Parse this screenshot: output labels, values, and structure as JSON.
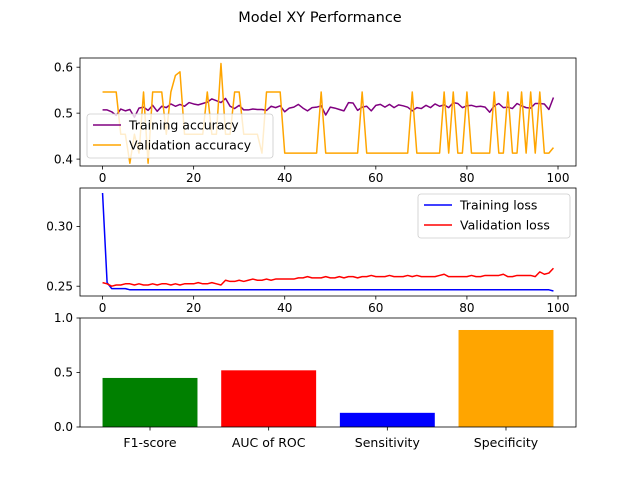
{
  "figure": {
    "title": "Model XY Performance"
  },
  "chart_data": [
    {
      "type": "line",
      "ylim": [
        0.385,
        0.62
      ],
      "xlim": [
        -4.95,
        103.95
      ],
      "x_ticks": [
        0,
        20,
        40,
        60,
        80,
        100
      ],
      "y_ticks": [
        0.4,
        0.5,
        0.6
      ],
      "legend_position": "lower-left",
      "grid": false,
      "series": [
        {
          "name": "Training accuracy",
          "color": "#800080",
          "values": [
            0.507,
            0.507,
            0.503,
            0.495,
            0.509,
            0.505,
            0.508,
            0.491,
            0.511,
            0.513,
            0.506,
            0.517,
            0.504,
            0.515,
            0.512,
            0.52,
            0.515,
            0.519,
            0.515,
            0.523,
            0.52,
            0.518,
            0.521,
            0.524,
            0.531,
            0.527,
            0.523,
            0.532,
            0.515,
            0.51,
            0.517,
            0.507,
            0.507,
            0.509,
            0.508,
            0.508,
            0.506,
            0.515,
            0.512,
            0.516,
            0.503,
            0.511,
            0.513,
            0.519,
            0.511,
            0.505,
            0.512,
            0.513,
            0.516,
            0.496,
            0.513,
            0.511,
            0.508,
            0.505,
            0.523,
            0.522,
            0.506,
            0.513,
            0.515,
            0.505,
            0.517,
            0.519,
            0.513,
            0.519,
            0.512,
            0.518,
            0.516,
            0.513,
            0.505,
            0.512,
            0.51,
            0.517,
            0.512,
            0.52,
            0.515,
            0.518,
            0.512,
            0.523,
            0.521,
            0.512,
            0.516,
            0.517,
            0.514,
            0.515,
            0.513,
            0.502,
            0.516,
            0.521,
            0.512,
            0.513,
            0.51,
            0.521,
            0.516,
            0.512,
            0.511,
            0.521,
            0.521,
            0.52,
            0.508,
            0.534
          ]
        },
        {
          "name": "Validation accuracy",
          "color": "#ffa500",
          "values": [
            0.546,
            0.546,
            0.546,
            0.546,
            0.454,
            0.454,
            0.391,
            0.454,
            0.413,
            0.546,
            0.391,
            0.546,
            0.546,
            0.546,
            0.454,
            0.546,
            0.582,
            0.59,
            0.454,
            0.454,
            0.454,
            0.454,
            0.454,
            0.546,
            0.454,
            0.454,
            0.608,
            0.454,
            0.454,
            0.546,
            0.546,
            0.454,
            0.454,
            0.454,
            0.454,
            0.413,
            0.546,
            0.546,
            0.546,
            0.546,
            0.413,
            0.413,
            0.413,
            0.413,
            0.413,
            0.413,
            0.413,
            0.413,
            0.546,
            0.413,
            0.413,
            0.413,
            0.413,
            0.413,
            0.413,
            0.413,
            0.413,
            0.546,
            0.413,
            0.413,
            0.413,
            0.413,
            0.413,
            0.413,
            0.413,
            0.413,
            0.413,
            0.413,
            0.546,
            0.413,
            0.413,
            0.413,
            0.413,
            0.413,
            0.413,
            0.546,
            0.413,
            0.546,
            0.413,
            0.413,
            0.546,
            0.413,
            0.413,
            0.413,
            0.413,
            0.413,
            0.546,
            0.413,
            0.413,
            0.546,
            0.413,
            0.413,
            0.546,
            0.413,
            0.546,
            0.413,
            0.546,
            0.413,
            0.413,
            0.425
          ]
        }
      ]
    },
    {
      "type": "line",
      "ylim": [
        0.2418,
        0.3322
      ],
      "xlim": [
        -4.95,
        103.95
      ],
      "x_ticks": [
        0,
        20,
        40,
        60,
        80,
        100
      ],
      "y_ticks": [
        0.25,
        0.3
      ],
      "legend_position": "upper-right",
      "grid": false,
      "series": [
        {
          "name": "Training loss",
          "color": "#0000ff",
          "values": [
            0.328,
            0.253,
            0.248,
            0.248,
            0.248,
            0.248,
            0.247,
            0.247,
            0.247,
            0.247,
            0.247,
            0.247,
            0.247,
            0.247,
            0.247,
            0.247,
            0.247,
            0.247,
            0.247,
            0.247,
            0.247,
            0.247,
            0.247,
            0.247,
            0.247,
            0.247,
            0.247,
            0.247,
            0.247,
            0.247,
            0.247,
            0.247,
            0.247,
            0.247,
            0.247,
            0.247,
            0.247,
            0.247,
            0.247,
            0.247,
            0.247,
            0.247,
            0.247,
            0.247,
            0.247,
            0.247,
            0.247,
            0.247,
            0.247,
            0.247,
            0.247,
            0.247,
            0.247,
            0.247,
            0.247,
            0.247,
            0.247,
            0.247,
            0.247,
            0.247,
            0.247,
            0.247,
            0.247,
            0.247,
            0.247,
            0.247,
            0.247,
            0.247,
            0.247,
            0.247,
            0.247,
            0.247,
            0.247,
            0.247,
            0.247,
            0.247,
            0.247,
            0.247,
            0.247,
            0.247,
            0.247,
            0.247,
            0.247,
            0.247,
            0.247,
            0.247,
            0.247,
            0.247,
            0.247,
            0.247,
            0.247,
            0.247,
            0.247,
            0.247,
            0.247,
            0.247,
            0.247,
            0.247,
            0.247,
            0.246
          ]
        },
        {
          "name": "Validation loss",
          "color": "#ff0000",
          "values": [
            0.253,
            0.252,
            0.25,
            0.251,
            0.251,
            0.252,
            0.252,
            0.251,
            0.252,
            0.251,
            0.251,
            0.252,
            0.251,
            0.252,
            0.252,
            0.251,
            0.252,
            0.251,
            0.252,
            0.252,
            0.252,
            0.253,
            0.252,
            0.252,
            0.253,
            0.252,
            0.251,
            0.255,
            0.254,
            0.254,
            0.255,
            0.254,
            0.255,
            0.256,
            0.255,
            0.255,
            0.256,
            0.255,
            0.256,
            0.256,
            0.256,
            0.256,
            0.256,
            0.257,
            0.257,
            0.258,
            0.257,
            0.257,
            0.257,
            0.258,
            0.257,
            0.257,
            0.258,
            0.257,
            0.258,
            0.258,
            0.257,
            0.258,
            0.258,
            0.259,
            0.258,
            0.258,
            0.258,
            0.259,
            0.258,
            0.258,
            0.258,
            0.259,
            0.258,
            0.259,
            0.258,
            0.258,
            0.258,
            0.258,
            0.259,
            0.26,
            0.258,
            0.258,
            0.258,
            0.258,
            0.258,
            0.259,
            0.258,
            0.258,
            0.259,
            0.259,
            0.259,
            0.259,
            0.26,
            0.258,
            0.258,
            0.259,
            0.259,
            0.259,
            0.259,
            0.258,
            0.262,
            0.26,
            0.261,
            0.265
          ]
        }
      ]
    },
    {
      "type": "bar",
      "ylim": [
        0,
        1.0
      ],
      "y_ticks": [
        0.0,
        0.5,
        1.0
      ],
      "grid": false,
      "categories": [
        "F1-score",
        "AUC of ROC",
        "Sensitivity",
        "Specificity"
      ],
      "values": [
        0.45,
        0.52,
        0.13,
        0.89
      ],
      "colors": [
        "#008000",
        "#ff0000",
        "#0000ff",
        "#ffa500"
      ]
    }
  ]
}
